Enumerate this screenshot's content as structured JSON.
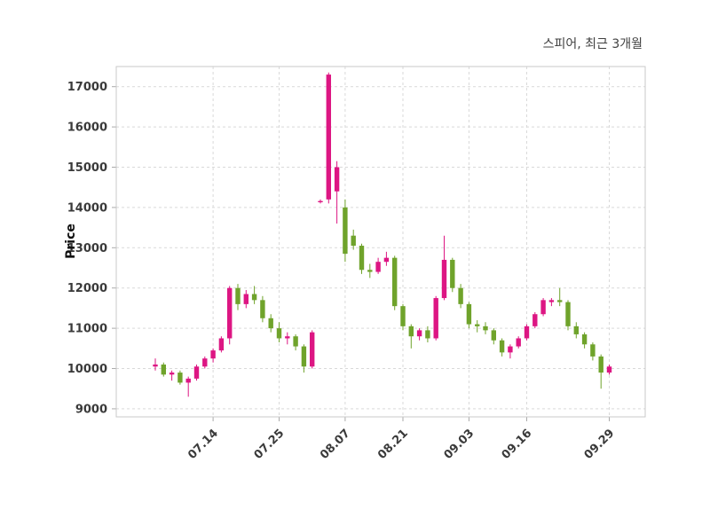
{
  "chart_data": {
    "type": "candlestick",
    "title": "스피어, 최근 3개월",
    "ylabel": "Price",
    "grid": true,
    "grid_style": "dashed",
    "up_color": "#dd1683",
    "down_color": "#6fa32b",
    "axis_color": "#c9c9c9",
    "grid_color": "#d9d9d9",
    "ylim": [
      8800,
      17500
    ],
    "y_ticks": [
      9000,
      10000,
      11000,
      12000,
      13000,
      14000,
      15000,
      16000,
      17000
    ],
    "x_tick_labels": [
      "07.14",
      "07.25",
      "08.07",
      "08.21",
      "09.03",
      "09.16",
      "09.29"
    ],
    "x_tick_indices": [
      7,
      15,
      23,
      30,
      38,
      45,
      55
    ],
    "ohlc_order": [
      "open",
      "high",
      "low",
      "close"
    ],
    "candles": [
      [
        10050,
        10250,
        9950,
        10100
      ],
      [
        10100,
        10150,
        9800,
        9850
      ],
      [
        9850,
        9950,
        9700,
        9900
      ],
      [
        9900,
        9950,
        9600,
        9650
      ],
      [
        9650,
        9800,
        9300,
        9750
      ],
      [
        9750,
        10100,
        9700,
        10050
      ],
      [
        10050,
        10300,
        10000,
        10250
      ],
      [
        10250,
        10500,
        10150,
        10450
      ],
      [
        10450,
        10800,
        10400,
        10750
      ],
      [
        10750,
        12050,
        10600,
        12000
      ],
      [
        12000,
        12100,
        11450,
        11600
      ],
      [
        11600,
        11950,
        11500,
        11850
      ],
      [
        11850,
        12050,
        11600,
        11700
      ],
      [
        11700,
        11800,
        11150,
        11250
      ],
      [
        11250,
        11350,
        10900,
        11000
      ],
      [
        11000,
        11150,
        10650,
        10750
      ],
      [
        10750,
        10900,
        10600,
        10800
      ],
      [
        10800,
        10850,
        10450,
        10550
      ],
      [
        10550,
        10600,
        9900,
        10050
      ],
      [
        10050,
        10950,
        10000,
        10900
      ],
      [
        14150,
        14200,
        14100,
        14160
      ],
      [
        14200,
        17350,
        14100,
        17300
      ],
      [
        14400,
        15150,
        13600,
        15000
      ],
      [
        14000,
        14200,
        12650,
        12850
      ],
      [
        13300,
        13450,
        12950,
        13050
      ],
      [
        13050,
        13100,
        12350,
        12450
      ],
      [
        12450,
        12600,
        12250,
        12400
      ],
      [
        12400,
        12750,
        12350,
        12650
      ],
      [
        12650,
        12900,
        12550,
        12750
      ],
      [
        12750,
        12800,
        11450,
        11550
      ],
      [
        11550,
        11600,
        10950,
        11050
      ],
      [
        11050,
        11100,
        10500,
        10800
      ],
      [
        10800,
        11000,
        10700,
        10950
      ],
      [
        10950,
        11050,
        10650,
        10750
      ],
      [
        10750,
        11800,
        10700,
        11750
      ],
      [
        11750,
        13300,
        11700,
        12700
      ],
      [
        12700,
        12750,
        11900,
        12000
      ],
      [
        12000,
        12100,
        11500,
        11600
      ],
      [
        11600,
        11650,
        11000,
        11100
      ],
      [
        11100,
        11200,
        10900,
        11050
      ],
      [
        11050,
        11150,
        10850,
        10950
      ],
      [
        10950,
        11000,
        10600,
        10700
      ],
      [
        10700,
        10750,
        10300,
        10400
      ],
      [
        10400,
        10600,
        10250,
        10550
      ],
      [
        10550,
        10800,
        10500,
        10750
      ],
      [
        10750,
        11100,
        10700,
        11050
      ],
      [
        11050,
        11400,
        11000,
        11350
      ],
      [
        11350,
        11750,
        11300,
        11700
      ],
      [
        11650,
        11750,
        11550,
        11700
      ],
      [
        11700,
        12000,
        11550,
        11650
      ],
      [
        11650,
        11700,
        10950,
        11050
      ],
      [
        11050,
        11150,
        10750,
        10850
      ],
      [
        10850,
        10900,
        10500,
        10600
      ],
      [
        10600,
        10650,
        10200,
        10300
      ],
      [
        10300,
        10350,
        9500,
        9900
      ],
      [
        9900,
        10100,
        9850,
        10050
      ]
    ]
  }
}
